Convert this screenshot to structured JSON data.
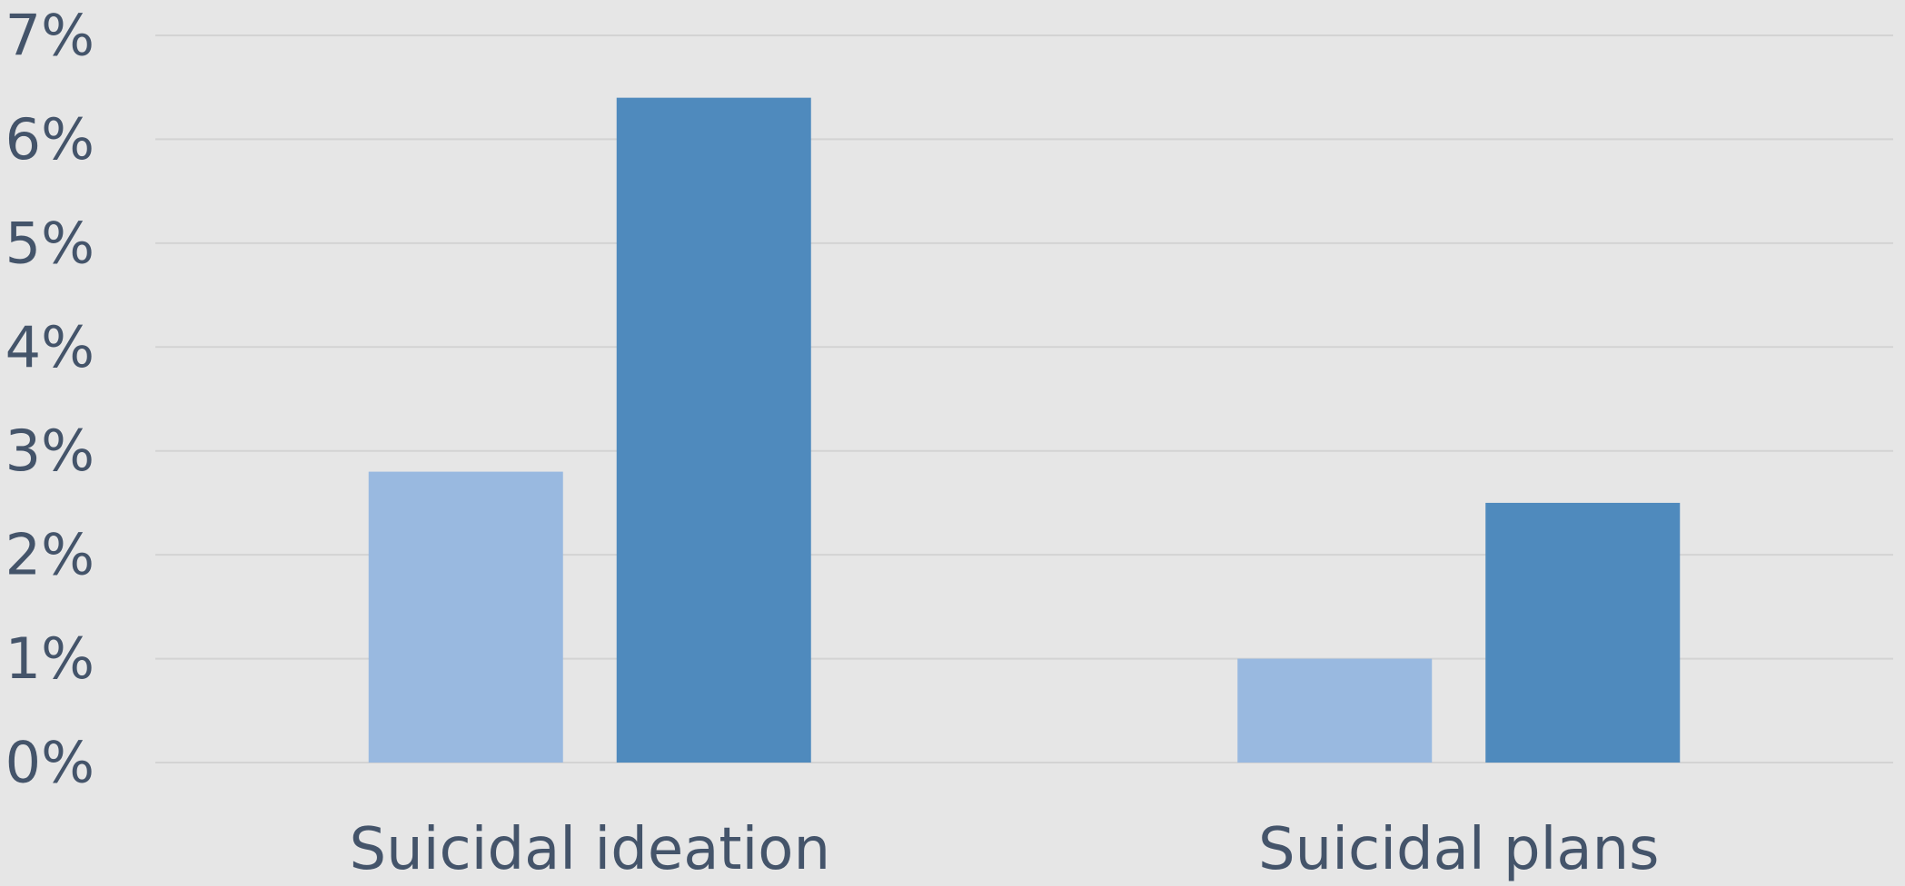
{
  "chart_data": {
    "type": "bar",
    "categories": [
      "Suicidal ideation",
      "Suicidal plans"
    ],
    "series": [
      {
        "color": "#99b9e0",
        "values": [
          2.8,
          1.0
        ]
      },
      {
        "color": "#4f8abd",
        "values": [
          6.4,
          2.5
        ]
      }
    ],
    "ylim": [
      0,
      7
    ],
    "y_ticks": [
      0,
      1,
      2,
      3,
      4,
      5,
      6,
      7
    ],
    "y_tick_labels": [
      "0%",
      "1%",
      "2%",
      "3%",
      "4%",
      "5%",
      "6%",
      "7%"
    ],
    "grid": true,
    "legend": "none",
    "background": "#e6e6e6",
    "text_color": "#44546a",
    "grid_color": "#d3d3d3"
  }
}
